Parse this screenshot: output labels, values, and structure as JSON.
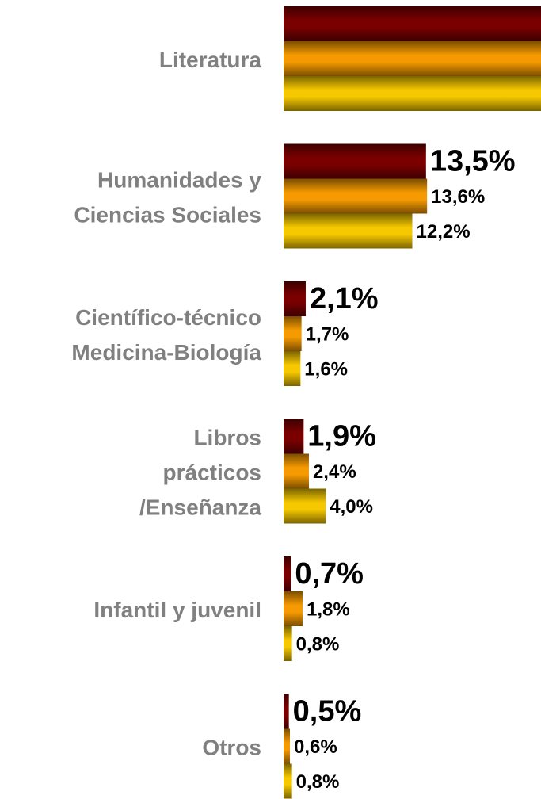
{
  "chart_data": {
    "type": "bar",
    "orientation": "horizontal",
    "categories": [
      [
        "Literatura"
      ],
      [
        "Humanidades y",
        "Ciencias Sociales"
      ],
      [
        "Científico-técnico",
        "Medicina-Biología"
      ],
      [
        "Libros",
        "prácticos",
        "/Enseñanza"
      ],
      [
        "Infantil y juvenil"
      ],
      [
        "Otros"
      ]
    ],
    "series": [
      {
        "color": "#7a0000",
        "values": [
          24.4,
          13.5,
          2.1,
          1.9,
          0.7,
          0.5
        ],
        "value_labels": [
          null,
          "13,5%",
          "2,1%",
          "1,9%",
          "0,7%",
          "0,5%"
        ]
      },
      {
        "color": "#f59a00",
        "values": [
          24.4,
          13.6,
          1.7,
          2.4,
          1.8,
          0.6
        ],
        "value_labels": [
          null,
          "13,6%",
          "1,7%",
          "2,4%",
          "1,8%",
          "0,6%"
        ]
      },
      {
        "color": "#f5c800",
        "values": [
          24.4,
          12.2,
          1.6,
          4.0,
          0.8,
          0.8
        ],
        "value_labels": [
          null,
          "12,2%",
          "1,6%",
          "4,0%",
          "0,8%",
          "0,8%"
        ]
      }
    ],
    "xlim": [
      0,
      24.4
    ]
  }
}
